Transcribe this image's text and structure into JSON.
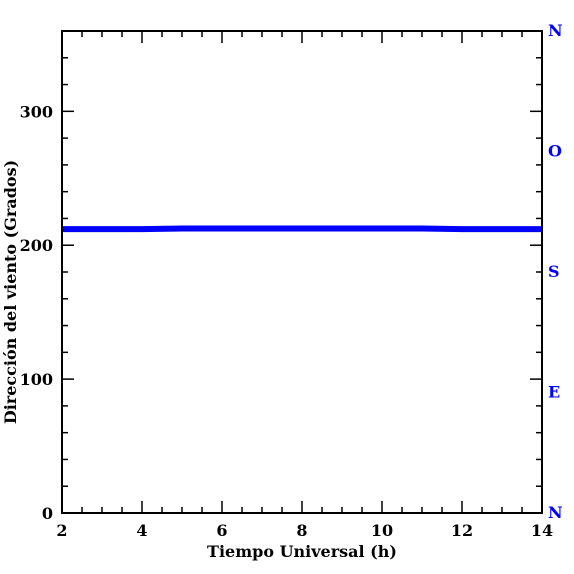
{
  "chart_data": {
    "type": "line",
    "title": "",
    "xlabel": "Tiempo Universal (h)",
    "ylabel": "Dirección del viento (Grados)",
    "xlim": [
      2,
      14
    ],
    "ylim": [
      0,
      360
    ],
    "x_ticks": [
      "2",
      "4",
      "6",
      "8",
      "10",
      "12",
      "14"
    ],
    "y_ticks": [
      "0",
      "100",
      "200",
      "300"
    ],
    "compass_axis": {
      "labels": [
        {
          "text": "N",
          "value": 0
        },
        {
          "text": "E",
          "value": 90
        },
        {
          "text": "S",
          "value": 180
        },
        {
          "text": "O",
          "value": 270
        },
        {
          "text": "N",
          "value": 360
        }
      ],
      "color": "#0000ff"
    },
    "grid": false,
    "series": [
      {
        "color": "#0000ff",
        "x": [
          2,
          3,
          4,
          5,
          6,
          7,
          8,
          9,
          10,
          11,
          12,
          13,
          14
        ],
        "values": [
          212,
          212,
          212,
          212.5,
          212.5,
          212.5,
          212.5,
          212.5,
          212.5,
          212.5,
          212,
          212,
          212
        ]
      }
    ]
  }
}
